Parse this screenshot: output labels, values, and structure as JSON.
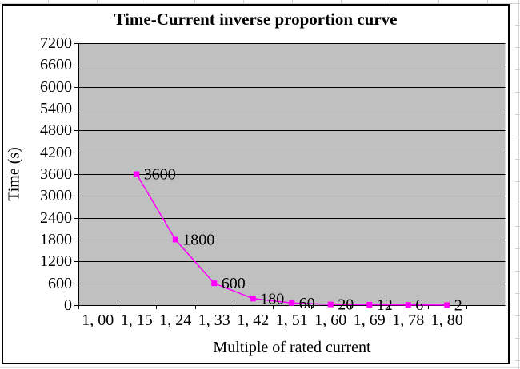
{
  "chart_data": {
    "type": "line",
    "title": "Time-Current inverse proportion curve",
    "xlabel": "Multiple of rated current",
    "ylabel": "Time (s)",
    "categories": [
      "1, 00",
      "1, 15",
      "1, 24",
      "1, 33",
      "1, 42",
      "1, 51",
      "1, 60",
      "1, 69",
      "1, 78",
      "1, 80"
    ],
    "values": [
      null,
      3600,
      1800,
      600,
      180,
      60,
      20,
      12,
      6,
      2
    ],
    "ylim": [
      0,
      7200
    ],
    "ytick_step": 600,
    "n_slots": 11,
    "grid": "horizontal",
    "legend": "none",
    "data_labels": "right-of-marker",
    "colors": {
      "line": "#ff00ff",
      "marker": "#ff00ff",
      "plot_background": "#c0c0c0",
      "gridline": "#000000",
      "text": "#000000",
      "frame_border": "#000000"
    }
  }
}
